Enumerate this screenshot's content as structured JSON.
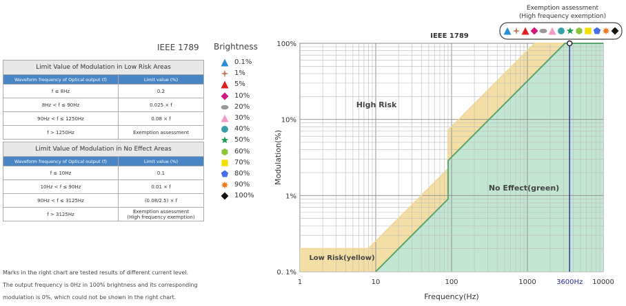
{
  "standard_label": "IEEE 1789",
  "brightness_title": "Brightness",
  "low_risk_table": {
    "title": "Limit Value of Modulation in Low Risk Areas",
    "headers": [
      "Waveform frequency of Optical output (f)",
      "Limit value (%)"
    ],
    "rows": [
      [
        "f ≤ 8Hz",
        "0.2"
      ],
      [
        "8Hz < f ≤ 90Hz",
        "0.025 × f"
      ],
      [
        "90Hz < f ≤ 1250Hz",
        "0.08 × f"
      ],
      [
        "f > 1250Hz",
        "Exemption assessment"
      ]
    ]
  },
  "no_effect_table": {
    "title": "Limit Value of Modulation in No Effect Areas",
    "headers": [
      "Waveform frequency of Optical output (f)",
      "Limit value (%)"
    ],
    "rows": [
      [
        "f ≤ 10Hz",
        "0.1"
      ],
      [
        "10Hz < f ≤ 90Hz",
        "0.01 × f"
      ],
      [
        "90Hz < f ≤ 3125Hz",
        "(0.08/2.5) × f"
      ],
      [
        "f > 3125Hz",
        "Exemption assessment\n(High frequency exemption)"
      ]
    ]
  },
  "legend": [
    {
      "label": "0.1%",
      "icon": "triangle-icon",
      "color": "#2a8fd6"
    },
    {
      "label": "1%",
      "icon": "four-point-star-icon",
      "color": "#c08060"
    },
    {
      "label": "5%",
      "icon": "triangle-icon",
      "color": "#e02020"
    },
    {
      "label": "10%",
      "icon": "diamond-icon",
      "color": "#d0197a"
    },
    {
      "label": "20%",
      "icon": "ellipse-icon",
      "color": "#999999"
    },
    {
      "label": "30%",
      "icon": "triangle-icon",
      "color": "#f29ac6"
    },
    {
      "label": "40%",
      "icon": "circle-icon",
      "color": "#3aa0a8"
    },
    {
      "label": "50%",
      "icon": "star-icon",
      "color": "#1e9a50"
    },
    {
      "label": "60%",
      "icon": "hexagon-icon",
      "color": "#8cc63f"
    },
    {
      "label": "70%",
      "icon": "square-icon",
      "color": "#f5e000"
    },
    {
      "label": "80%",
      "icon": "pentagon-icon",
      "color": "#4a70e8"
    },
    {
      "label": "90%",
      "icon": "burst-icon",
      "color": "#f07820"
    },
    {
      "label": "100%",
      "icon": "diamond-icon",
      "color": "#111111"
    }
  ],
  "notes": [
    "Marks in the right chart are tested results of different current level.",
    "The output frequency is 0Hz in 100% brightness and its corresponding",
    "modulation is 0%, which could not be shown in the right chart."
  ],
  "chart_data": {
    "type": "area",
    "title": "IEEE 1789",
    "xlabel": "Frequency(Hz)",
    "ylabel": "Modulation(%)",
    "x_scale": "log",
    "y_scale": "log",
    "xlim": [
      1,
      10000
    ],
    "ylim": [
      0.1,
      100
    ],
    "x_ticks": [
      1,
      10,
      100,
      1000,
      10000
    ],
    "x_tick_labels": [
      "1",
      "10",
      "100",
      "1000",
      "10000"
    ],
    "y_ticks": [
      0.1,
      1,
      10,
      100
    ],
    "y_tick_labels": [
      "0. 1%",
      "1%",
      "10%",
      "100%"
    ],
    "grid": true,
    "series": [
      {
        "name": "Low Risk(yellow)",
        "color": "#f3dfa5",
        "x": [
          1,
          8,
          90,
          90,
          1250,
          10000
        ],
        "y": [
          0.2,
          0.2,
          2.25,
          7.2,
          100,
          100
        ]
      },
      {
        "name": "No Effect(green)",
        "color": "#5aa56e",
        "x": [
          1,
          10,
          90,
          90,
          3125,
          10000
        ],
        "y": [
          0.1,
          0.1,
          0.9,
          2.88,
          100,
          100
        ]
      }
    ],
    "region_labels": [
      "High Risk",
      "No Effect(green)",
      "Low Risk(yellow)"
    ],
    "marker_line": {
      "x": 3600,
      "label": "3600Hz",
      "color": "#2a2aa0"
    },
    "exemption": {
      "label_line1": "Exemption assessment",
      "label_line2": "(High frequency exemption)"
    }
  }
}
